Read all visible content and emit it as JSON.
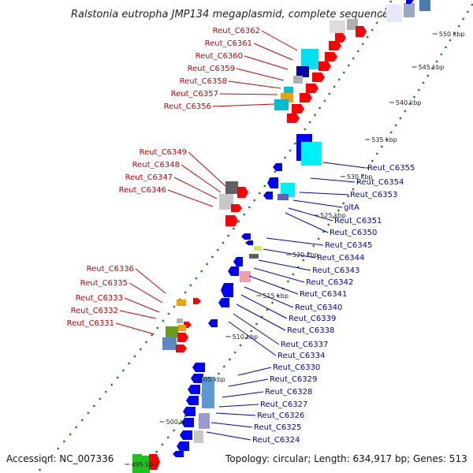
{
  "title": "Ralstonia eutropha JMP134 megaplasmid, complete sequence",
  "footer": {
    "accession": "Accession: NC_007336",
    "stats": "Topology: circular; Length: 634,917 bp; Genes: 513"
  },
  "colors": {
    "forward_label": "#cc0000",
    "reverse_label": "#0000cc",
    "forward_cds": "#ff0000",
    "reverse_cds": "#0000ff",
    "backbone": "#9a9a9a",
    "tick": "#2a8a2a"
  },
  "scale_ticks": [
    "550 kbp",
    "545 kbp",
    "540 kbp",
    "535 kbp",
    "530 kbp",
    "525 kbp",
    "520 kbp",
    "515 kbp",
    "510 kbp",
    "505 kbp",
    "500 kbp",
    "495 kbp"
  ],
  "forward_labels": [
    "Reut_C6362",
    "Reut_C6361",
    "Reut_C6360",
    "Reut_C6359",
    "Reut_C6358",
    "Reut_C6357",
    "Reut_C6356",
    "Reut_C6349",
    "Reut_C6348",
    "Reut_C6347",
    "Reut_C6346",
    "Reut_C6336",
    "Reut_C6335",
    "Reut_C6333",
    "Reut_C6332",
    "Reut_C6331"
  ],
  "reverse_labels": [
    "Reut_C6355",
    "Reut_C6354",
    "Reut_C6353",
    "gltA",
    "Reut_C6351",
    "Reut_C6350",
    "Reut_C6345",
    "Reut_C6344",
    "Reut_C6343",
    "Reut_C6342",
    "Reut_C6341",
    "Reut_C6340",
    "Reut_C6339",
    "Reut_C6338",
    "Reut_C6337",
    "Reut_C6334",
    "Reut_C6330",
    "Reut_C6329",
    "Reut_C6328",
    "Reut_C6327",
    "Reut_C6326",
    "Reut_C6325",
    "Reut_C6324"
  ]
}
